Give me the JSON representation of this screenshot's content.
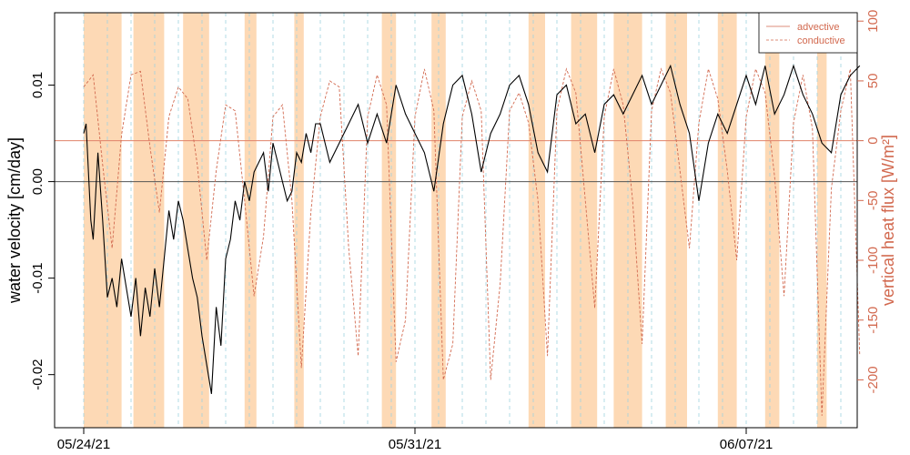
{
  "chart_data": {
    "type": "line",
    "title": "",
    "xlabel": "",
    "ylabel": "water velocity [cm/day]",
    "ylabel_right": "vertical heat flux [W/m²]",
    "x_range_days": [
      "2021-05-23T06:00",
      "2021-06-09T03:00"
    ],
    "x_ticks": [
      {
        "date": "2021-05-24",
        "label": "05/24/21"
      },
      {
        "date": "2021-05-31",
        "label": "05/31/21"
      },
      {
        "date": "2021-06-07",
        "label": "06/07/21"
      }
    ],
    "ylim": [
      -0.0255,
      0.0175
    ],
    "y_ticks": [
      -0.02,
      -0.01,
      0.0,
      0.01
    ],
    "y_tick_labels": [
      "-0.02",
      "-0.01",
      "0.00",
      "0.01"
    ],
    "ylim_right": [
      -240,
      107
    ],
    "y_ticks_right": [
      -200,
      -150,
      -100,
      -50,
      0,
      50,
      100
    ],
    "y_tick_labels_right": [
      "-200",
      "-150",
      "-100",
      "-50",
      "0",
      "50",
      "100"
    ],
    "zero_line_left": 0.0,
    "zero_line_right": 0,
    "legend": {
      "placement": "top-right",
      "entries": [
        {
          "label": "advective",
          "style": "solid"
        },
        {
          "label": "conductive",
          "style": "dashed"
        }
      ]
    },
    "shaded_periods_days_from_0524": [
      [
        0.0,
        0.8
      ],
      [
        1.05,
        1.7
      ],
      [
        2.1,
        2.65
      ],
      [
        3.4,
        3.65
      ],
      [
        4.45,
        4.65
      ],
      [
        6.3,
        6.6
      ],
      [
        7.35,
        7.65
      ],
      [
        9.4,
        9.75
      ],
      [
        10.3,
        10.85
      ],
      [
        11.2,
        11.8
      ],
      [
        12.3,
        12.75
      ],
      [
        13.4,
        13.8
      ],
      [
        14.4,
        14.7
      ],
      [
        15.5,
        15.7
      ]
    ],
    "velocity_series": {
      "name": "advective",
      "x_days_from_0524": [
        0.0,
        0.05,
        0.1,
        0.15,
        0.2,
        0.3,
        0.4,
        0.5,
        0.6,
        0.7,
        0.8,
        0.9,
        1.0,
        1.1,
        1.2,
        1.3,
        1.4,
        1.5,
        1.6,
        1.7,
        1.8,
        1.9,
        2.0,
        2.1,
        2.2,
        2.3,
        2.4,
        2.5,
        2.6,
        2.7,
        2.8,
        2.9,
        3.0,
        3.1,
        3.2,
        3.3,
        3.4,
        3.5,
        3.6,
        3.7,
        3.8,
        3.9,
        4.0,
        4.1,
        4.2,
        4.3,
        4.4,
        4.5,
        4.6,
        4.7,
        4.8,
        4.9,
        5.0,
        5.2,
        5.4,
        5.6,
        5.8,
        6.0,
        6.2,
        6.4,
        6.6,
        6.8,
        7.0,
        7.2,
        7.4,
        7.6,
        7.8,
        8.0,
        8.2,
        8.4,
        8.6,
        8.8,
        9.0,
        9.2,
        9.4,
        9.6,
        9.8,
        10.0,
        10.2,
        10.4,
        10.6,
        10.8,
        11.0,
        11.2,
        11.4,
        11.6,
        11.8,
        12.0,
        12.2,
        12.4,
        12.6,
        12.8,
        13.0,
        13.2,
        13.4,
        13.6,
        13.8,
        14.0,
        14.2,
        14.4,
        14.6,
        14.8,
        15.0,
        15.2,
        15.4,
        15.6,
        15.8,
        16.0,
        16.2,
        16.4
      ],
      "values": [
        0.005,
        0.006,
        0.001,
        -0.004,
        -0.006,
        0.003,
        -0.004,
        -0.012,
        -0.01,
        -0.013,
        -0.008,
        -0.011,
        -0.014,
        -0.01,
        -0.016,
        -0.011,
        -0.014,
        -0.009,
        -0.013,
        -0.008,
        -0.003,
        -0.006,
        -0.002,
        -0.004,
        -0.007,
        -0.01,
        -0.012,
        -0.016,
        -0.019,
        -0.022,
        -0.013,
        -0.017,
        -0.008,
        -0.006,
        -0.002,
        -0.004,
        0.0,
        -0.002,
        0.001,
        0.002,
        0.003,
        -0.001,
        0.004,
        0.002,
        0.0,
        -0.002,
        -0.001,
        0.003,
        0.002,
        0.005,
        0.003,
        0.006,
        0.006,
        0.002,
        0.004,
        0.006,
        0.008,
        0.004,
        0.007,
        0.004,
        0.01,
        0.007,
        0.005,
        0.003,
        -0.001,
        0.006,
        0.01,
        0.011,
        0.007,
        0.001,
        0.005,
        0.007,
        0.01,
        0.011,
        0.008,
        0.003,
        0.001,
        0.009,
        0.01,
        0.006,
        0.007,
        0.003,
        0.008,
        0.009,
        0.007,
        0.009,
        0.011,
        0.008,
        0.01,
        0.012,
        0.008,
        0.005,
        -0.002,
        0.004,
        0.007,
        0.005,
        0.008,
        0.011,
        0.008,
        0.012,
        0.007,
        0.009,
        0.012,
        0.009,
        0.007,
        0.004,
        0.003,
        0.009,
        0.011,
        0.012
      ]
    },
    "heat_flux_series": {
      "name": "conductive",
      "x_days_from_0524": [
        0.0,
        0.2,
        0.4,
        0.6,
        0.8,
        1.0,
        1.2,
        1.4,
        1.6,
        1.8,
        2.0,
        2.2,
        2.4,
        2.6,
        2.8,
        3.0,
        3.2,
        3.4,
        3.6,
        3.8,
        4.0,
        4.2,
        4.4,
        4.6,
        4.8,
        5.0,
        5.2,
        5.4,
        5.6,
        5.8,
        6.0,
        6.2,
        6.4,
        6.6,
        6.8,
        7.0,
        7.2,
        7.4,
        7.6,
        7.8,
        8.0,
        8.2,
        8.4,
        8.6,
        8.8,
        9.0,
        9.2,
        9.4,
        9.6,
        9.8,
        10.0,
        10.2,
        10.4,
        10.6,
        10.8,
        11.0,
        11.2,
        11.4,
        11.6,
        11.8,
        12.0,
        12.2,
        12.4,
        12.6,
        12.8,
        13.0,
        13.2,
        13.4,
        13.6,
        13.8,
        14.0,
        14.2,
        14.4,
        14.6,
        14.8,
        15.0,
        15.2,
        15.4,
        15.6,
        15.8,
        16.0,
        16.2,
        16.4
      ],
      "values": [
        45,
        55,
        -20,
        -90,
        5,
        55,
        58,
        -5,
        -60,
        20,
        45,
        35,
        -20,
        -100,
        -25,
        30,
        25,
        -50,
        -130,
        -80,
        20,
        30,
        -50,
        -190,
        -60,
        20,
        50,
        45,
        -90,
        -180,
        20,
        55,
        30,
        -185,
        -150,
        20,
        60,
        25,
        -200,
        -170,
        20,
        50,
        25,
        -200,
        -120,
        25,
        40,
        15,
        -50,
        -180,
        25,
        60,
        40,
        -50,
        -140,
        20,
        60,
        30,
        -50,
        -170,
        25,
        60,
        40,
        -25,
        -90,
        15,
        60,
        35,
        -25,
        -100,
        20,
        60,
        40,
        -30,
        -130,
        15,
        55,
        10,
        -230,
        -40,
        25,
        60,
        -180
      ]
    }
  }
}
